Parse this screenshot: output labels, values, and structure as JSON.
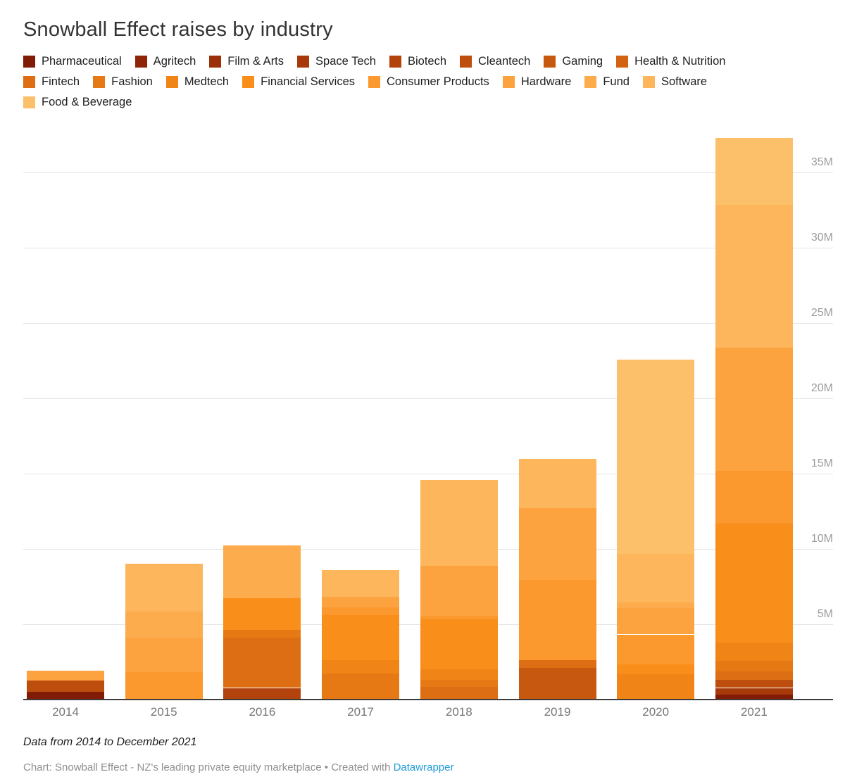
{
  "title": "Snowball Effect raises by industry",
  "legend": {
    "items": [
      {
        "label": "Pharmaceutical",
        "color": "#801B06",
        "row": 1
      },
      {
        "label": "Agritech",
        "color": "#8E2507",
        "row": 1
      },
      {
        "label": "Film & Arts",
        "color": "#9B2F09",
        "row": 1
      },
      {
        "label": "Space Tech",
        "color": "#A7390B",
        "row": 1
      },
      {
        "label": "Biotech",
        "color": "#B2430C",
        "row": 1
      },
      {
        "label": "Cleantech",
        "color": "#BD4E0E",
        "row": 1
      },
      {
        "label": "Gaming",
        "color": "#C75810",
        "row": 1
      },
      {
        "label": "Health & Nutrition",
        "color": "#D26311",
        "row": 1
      },
      {
        "label": "Fintech",
        "color": "#DD6E13",
        "row": 2
      },
      {
        "label": "Fashion",
        "color": "#E77914",
        "row": 2
      },
      {
        "label": "Medtech",
        "color": "#F18416",
        "row": 2
      },
      {
        "label": "Financial Services",
        "color": "#F98E1B",
        "row": 2
      },
      {
        "label": "Consumer Products",
        "color": "#FB982E",
        "row": 2
      },
      {
        "label": "Hardware",
        "color": "#FCA23F",
        "row": 2
      },
      {
        "label": "Fund",
        "color": "#FCAC4D",
        "row": 2
      },
      {
        "label": "Software",
        "color": "#FDB65B",
        "row": 2
      },
      {
        "label": "Food & Beverage",
        "color": "#FDC06A",
        "row": 3
      }
    ]
  },
  "chart_data": {
    "type": "bar",
    "stacked": true,
    "title": "Snowball Effect raises by industry",
    "categories": [
      "2014",
      "2015",
      "2016",
      "2017",
      "2018",
      "2019",
      "2020",
      "2021"
    ],
    "y_axis": {
      "unit": "M",
      "ticks": [
        5,
        10,
        15,
        20,
        25,
        30,
        35
      ],
      "range": [
        0,
        38.5
      ],
      "grid": true
    },
    "legend_position": "top",
    "bars": [
      {
        "year": "2014",
        "total": 1.9,
        "segments": [
          {
            "industry": "Pharmaceutical",
            "value": 0.5
          },
          {
            "industry": "Cleantech",
            "value": 0.75
          },
          {
            "industry": "Hardware",
            "value": 0.65
          }
        ]
      },
      {
        "year": "2015",
        "total": 9.0,
        "segments": [
          {
            "industry": "Consumer Products",
            "value": 1.8
          },
          {
            "industry": "Hardware",
            "value": 2.3
          },
          {
            "industry": "Fund",
            "value": 1.7
          },
          {
            "industry": "Software",
            "value": 3.2
          }
        ]
      },
      {
        "year": "2016",
        "total": 10.2,
        "segments": [
          {
            "industry": "Biotech",
            "value": 0.75
          },
          {
            "industry": "Fintech",
            "value": 3.35
          },
          {
            "industry": "Fashion",
            "value": 0.5
          },
          {
            "industry": "Financial Services",
            "value": 2.1
          },
          {
            "industry": "Fund",
            "value": 3.5
          }
        ]
      },
      {
        "year": "2017",
        "total": 8.6,
        "segments": [
          {
            "industry": "Fashion",
            "value": 1.7
          },
          {
            "industry": "Medtech",
            "value": 0.9
          },
          {
            "industry": "Financial Services",
            "value": 3.0
          },
          {
            "industry": "Consumer Products",
            "value": 0.5
          },
          {
            "industry": "Hardware",
            "value": 0.7
          },
          {
            "industry": "Software",
            "value": 1.8
          }
        ]
      },
      {
        "year": "2018",
        "total": 14.55,
        "segments": [
          {
            "industry": "Fintech",
            "value": 0.8
          },
          {
            "industry": "Fashion",
            "value": 0.5
          },
          {
            "industry": "Medtech",
            "value": 0.7
          },
          {
            "industry": "Financial Services",
            "value": 3.3
          },
          {
            "industry": "Consumer Products",
            "value": 0.25
          },
          {
            "industry": "Hardware",
            "value": 3.3
          },
          {
            "industry": "Software",
            "value": 5.7
          }
        ]
      },
      {
        "year": "2019",
        "total": 15.95,
        "segments": [
          {
            "industry": "Gaming",
            "value": 2.1
          },
          {
            "industry": "Fintech",
            "value": 0.5
          },
          {
            "industry": "Consumer Products",
            "value": 5.3
          },
          {
            "industry": "Hardware",
            "value": 4.8
          },
          {
            "industry": "Software",
            "value": 3.25
          }
        ]
      },
      {
        "year": "2020",
        "total": 22.55,
        "segments": [
          {
            "industry": "Medtech",
            "value": 1.65
          },
          {
            "industry": "Financial Services",
            "value": 0.65
          },
          {
            "industry": "Consumer Products",
            "value": 2.0
          },
          {
            "industry": "Hardware",
            "value": 1.75
          },
          {
            "industry": "Fund",
            "value": 0.4
          },
          {
            "industry": "Software",
            "value": 3.2
          },
          {
            "industry": "Food & Beverage",
            "value": 12.9
          }
        ]
      },
      {
        "year": "2021",
        "total": 37.25,
        "segments": [
          {
            "industry": "Pharmaceutical",
            "value": 0.3
          },
          {
            "industry": "Space Tech",
            "value": 0.45
          },
          {
            "industry": "Cleantech",
            "value": 0.55
          },
          {
            "industry": "Fintech",
            "value": 0.55
          },
          {
            "industry": "Fashion",
            "value": 0.7
          },
          {
            "industry": "Medtech",
            "value": 1.2
          },
          {
            "industry": "Financial Services",
            "value": 7.9
          },
          {
            "industry": "Consumer Products",
            "value": 3.5
          },
          {
            "industry": "Hardware",
            "value": 8.2
          },
          {
            "industry": "Software",
            "value": 9.5
          },
          {
            "industry": "Food & Beverage",
            "value": 4.4
          }
        ]
      }
    ]
  },
  "footer": {
    "note": "Data from 2014 to December 2021",
    "byline_prefix": "Chart: Snowball Effect - NZ's leading private equity marketplace • Created with ",
    "link_label": "Datawrapper",
    "link_color": "#1e9bd9"
  }
}
